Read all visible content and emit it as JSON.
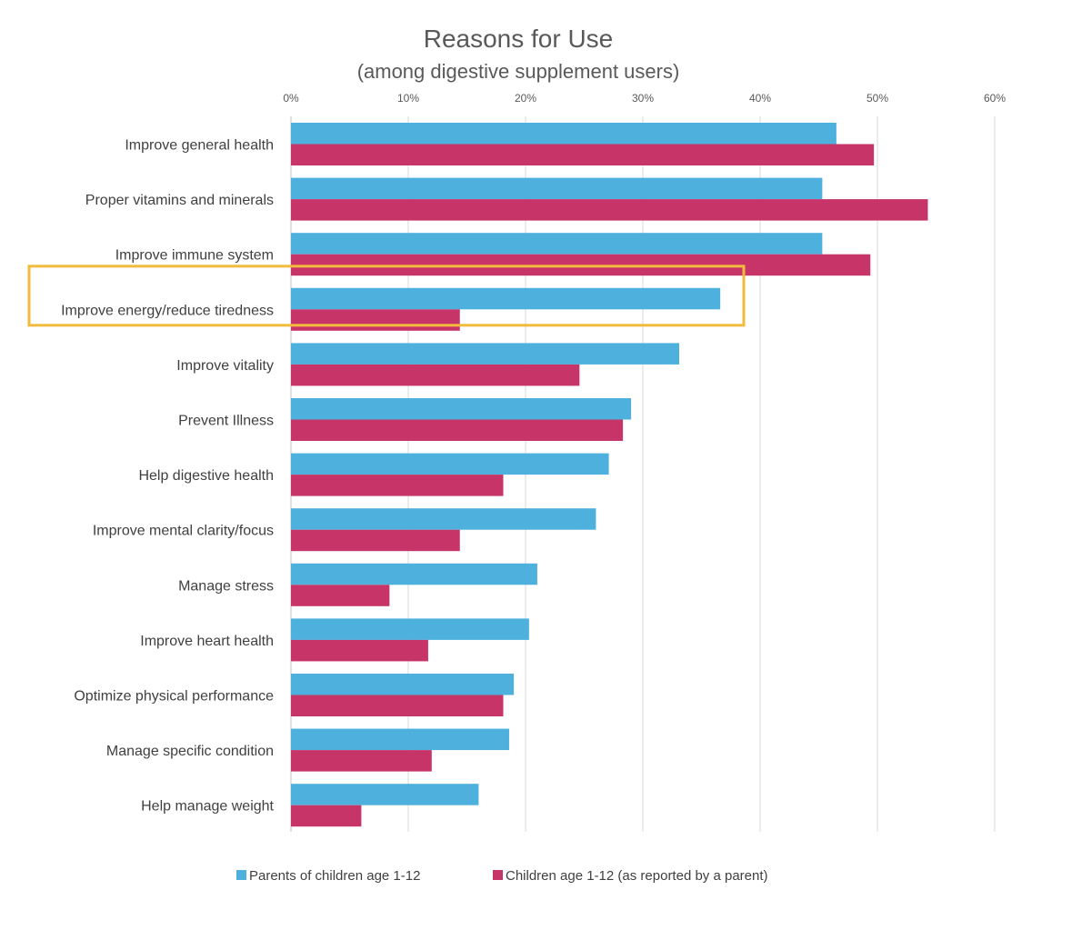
{
  "chart_data": {
    "type": "bar",
    "orientation": "horizontal",
    "title": "Reasons for Use",
    "subtitle": "(among digestive supplement users)",
    "xlim": [
      0,
      0.6
    ],
    "x_ticks": [
      "0%",
      "10%",
      "20%",
      "30%",
      "40%",
      "50%",
      "60%"
    ],
    "x_tick_values": [
      0,
      0.1,
      0.2,
      0.3,
      0.4,
      0.5,
      0.6
    ],
    "x_axis_position": "top",
    "grid": true,
    "legend_position": "bottom",
    "categories": [
      "Improve general health",
      "Proper vitamins and minerals",
      "Improve immune system",
      "Improve energy/reduce tiredness",
      "Improve vitality",
      "Prevent Illness",
      "Help digestive health",
      "Improve mental clarity/focus",
      "Manage stress",
      "Improve heart health",
      "Optimize physical performance",
      "Manage specific condition",
      "Help manage weight"
    ],
    "series": [
      {
        "name": "Parents of children age 1-12",
        "color": "#4eb0dd",
        "values": [
          0.465,
          0.453,
          0.453,
          0.366,
          0.331,
          0.29,
          0.271,
          0.26,
          0.21,
          0.203,
          0.19,
          0.186,
          0.16
        ]
      },
      {
        "name": "Children age 1-12 (as reported by a parent)",
        "color": "#c73468",
        "values": [
          0.497,
          0.543,
          0.494,
          0.144,
          0.246,
          0.283,
          0.181,
          0.144,
          0.084,
          0.117,
          0.181,
          0.12,
          0.06
        ]
      }
    ],
    "highlight": {
      "category": "Improve energy/reduce tiredness",
      "color": "#f2bb3d"
    }
  }
}
